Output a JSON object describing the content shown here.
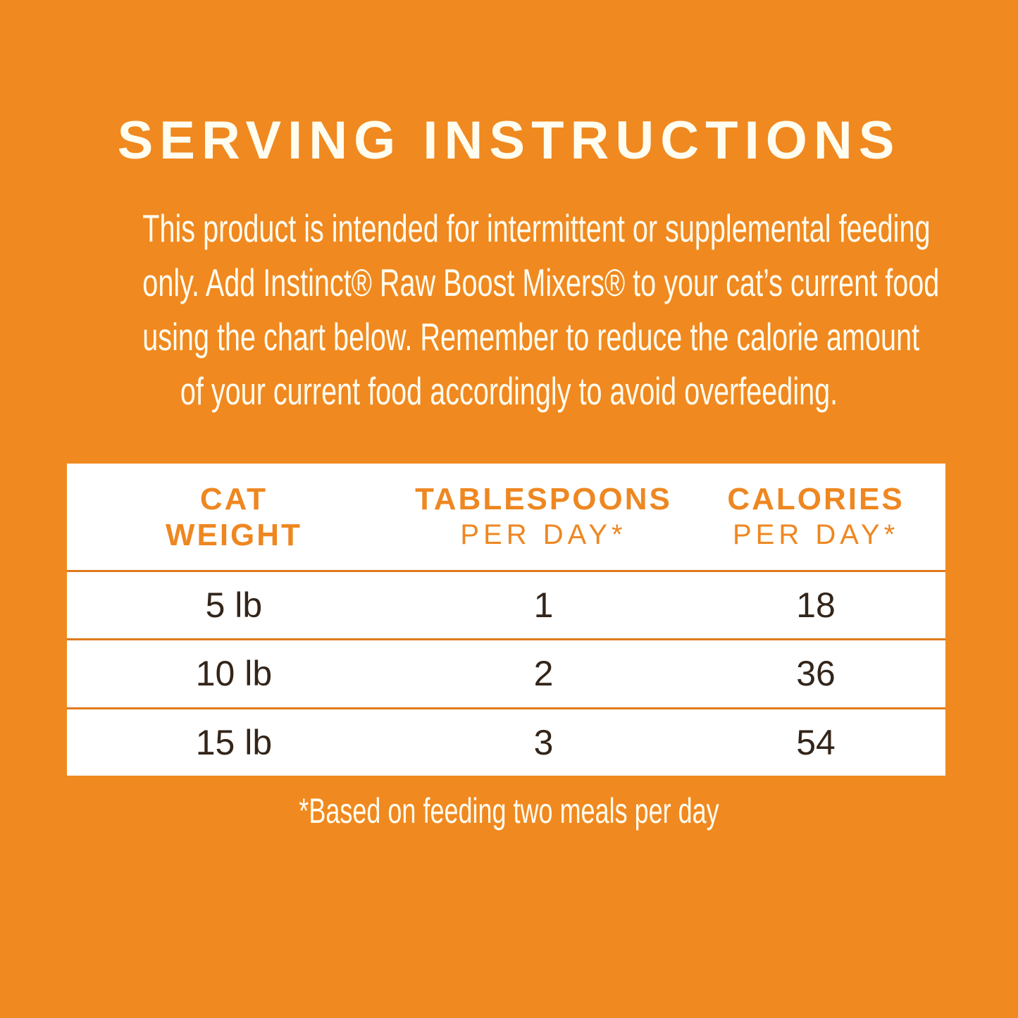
{
  "page": {
    "title": "SERVING INSTRUCTIONS",
    "intro_lines": [
      "This product is intended for intermittent or supplemental feeding",
      "only. Add Instinct® Raw Boost Mixers® to your cat’s current food",
      "using the chart below. Remember to reduce the calorie amount",
      "of your current food accordingly to avoid overfeeding."
    ],
    "footnote": "*Based on feeding two meals per day"
  },
  "table": {
    "columns": [
      {
        "line1": "CAT",
        "line2": "WEIGHT"
      },
      {
        "line1": "TABLESPOONS",
        "line2": "PER DAY*"
      },
      {
        "line1": "CALORIES",
        "line2": "PER DAY*"
      }
    ],
    "rows": [
      [
        "5 lb",
        "1",
        "18"
      ],
      [
        "10 lb",
        "2",
        "36"
      ],
      [
        "15 lb",
        "3",
        "54"
      ]
    ]
  },
  "colors": {
    "background_orange": "#F0891F",
    "header_text_orange": "#EE8721",
    "row_divider_orange": "#E0791C",
    "table_text_dark": "#33251A",
    "table_background": "#FFFFFF",
    "label_text_cream": "#FFFCF0"
  }
}
